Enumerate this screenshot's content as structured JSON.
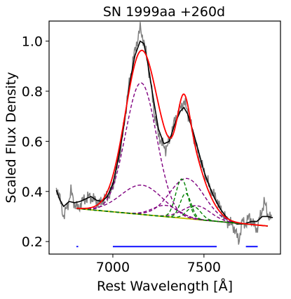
{
  "chart_data": {
    "type": "line",
    "title": "SN 1999aa  +260d",
    "xlabel": "Rest Wavelength [Å]",
    "ylabel": "Scaled Flux Density",
    "xlim": [
      6650,
      7920
    ],
    "ylim": [
      0.15,
      1.08
    ],
    "xticks": [
      7000,
      7500
    ],
    "xtick_labels": [
      "7000",
      "7500"
    ],
    "yticks": [
      0.2,
      0.4,
      0.6,
      0.8,
      1.0
    ],
    "ytick_labels": [
      "0.2",
      "0.4",
      "0.6",
      "0.8",
      "1.0"
    ],
    "grid": false,
    "colors": {
      "observed": "#808080",
      "smoothed": "#000000",
      "total_fit": "#ff0000",
      "components_a": "#800080",
      "components_b": "#008000",
      "continuum": "#bfbf00",
      "fit_regions": "#0000ff"
    },
    "continuum": {
      "x": [
        6800,
        7850
      ],
      "y": [
        0.332,
        0.262
      ]
    },
    "components": [
      {
        "style": "dashed",
        "color": "#800080",
        "center": 7155,
        "sigma": 85,
        "amplitude": 0.525
      },
      {
        "style": "dashed",
        "color": "#800080",
        "center": 7160,
        "sigma": 115,
        "amplitude": 0.117
      },
      {
        "style": "dashed",
        "color": "#800080",
        "center": 7291,
        "sigma": 72,
        "amplitude": 0.045
      },
      {
        "style": "dashed",
        "color": "#800080",
        "center": 7407,
        "sigma": 95,
        "amplitude": 0.16
      },
      {
        "style": "dashed",
        "color": "#800080",
        "center": 7460,
        "sigma": 75,
        "amplitude": 0.055
      },
      {
        "style": "dashed",
        "color": "#008000",
        "center": 7378,
        "sigma": 33,
        "amplitude": 0.156
      },
      {
        "style": "dashed",
        "color": "#008000",
        "center": 7400,
        "sigma": 30,
        "amplitude": 0.1
      },
      {
        "style": "dashed",
        "color": "#008000",
        "center": 7445,
        "sigma": 38,
        "amplitude": 0.05
      }
    ],
    "fit_regions": [
      [
        6800,
        6810
      ],
      [
        7000,
        7570
      ],
      [
        7730,
        7795
      ]
    ],
    "observed_anchors": [
      [
        6690,
        0.42
      ],
      [
        6710,
        0.37
      ],
      [
        6730,
        0.3
      ],
      [
        6750,
        0.34
      ],
      [
        6770,
        0.4
      ],
      [
        6790,
        0.35
      ],
      [
        6810,
        0.33
      ],
      [
        6830,
        0.36
      ],
      [
        6850,
        0.37
      ],
      [
        6870,
        0.38
      ],
      [
        6890,
        0.37
      ],
      [
        6910,
        0.36
      ],
      [
        6930,
        0.35
      ],
      [
        6950,
        0.37
      ],
      [
        6970,
        0.38
      ],
      [
        6990,
        0.4
      ],
      [
        7010,
        0.45
      ],
      [
        7030,
        0.52
      ],
      [
        7050,
        0.6
      ],
      [
        7070,
        0.72
      ],
      [
        7090,
        0.83
      ],
      [
        7110,
        0.92
      ],
      [
        7130,
        0.99
      ],
      [
        7150,
        1.05
      ],
      [
        7170,
        1.0
      ],
      [
        7190,
        0.92
      ],
      [
        7210,
        0.82
      ],
      [
        7230,
        0.7
      ],
      [
        7250,
        0.63
      ],
      [
        7270,
        0.59
      ],
      [
        7290,
        0.57
      ],
      [
        7310,
        0.6
      ],
      [
        7330,
        0.66
      ],
      [
        7350,
        0.7
      ],
      [
        7370,
        0.73
      ],
      [
        7390,
        0.76
      ],
      [
        7410,
        0.72
      ],
      [
        7430,
        0.66
      ],
      [
        7450,
        0.6
      ],
      [
        7470,
        0.55
      ],
      [
        7490,
        0.5
      ],
      [
        7510,
        0.46
      ],
      [
        7530,
        0.42
      ],
      [
        7550,
        0.39
      ],
      [
        7570,
        0.37
      ],
      [
        7590,
        0.33
      ],
      [
        7610,
        0.3
      ],
      [
        7630,
        0.28
      ],
      [
        7650,
        0.27
      ],
      [
        7670,
        0.25
      ],
      [
        7690,
        0.2
      ],
      [
        7710,
        0.28
      ],
      [
        7730,
        0.27
      ],
      [
        7750,
        0.3
      ],
      [
        7770,
        0.27
      ],
      [
        7790,
        0.25
      ],
      [
        7810,
        0.3
      ],
      [
        7830,
        0.36
      ],
      [
        7850,
        0.31
      ],
      [
        7870,
        0.29
      ]
    ],
    "smoothed_anchors": [
      [
        6690,
        0.405
      ],
      [
        6710,
        0.365
      ],
      [
        6730,
        0.34
      ],
      [
        6760,
        0.36
      ],
      [
        6790,
        0.355
      ],
      [
        6820,
        0.36
      ],
      [
        6850,
        0.37
      ],
      [
        6880,
        0.38
      ],
      [
        6910,
        0.365
      ],
      [
        6940,
        0.36
      ],
      [
        6970,
        0.38
      ],
      [
        7000,
        0.43
      ],
      [
        7030,
        0.53
      ],
      [
        7060,
        0.66
      ],
      [
        7090,
        0.82
      ],
      [
        7120,
        0.94
      ],
      [
        7150,
        1.0
      ],
      [
        7170,
        0.99
      ],
      [
        7190,
        0.92
      ],
      [
        7220,
        0.78
      ],
      [
        7250,
        0.65
      ],
      [
        7280,
        0.59
      ],
      [
        7310,
        0.6
      ],
      [
        7340,
        0.67
      ],
      [
        7370,
        0.72
      ],
      [
        7390,
        0.735
      ],
      [
        7410,
        0.71
      ],
      [
        7440,
        0.64
      ],
      [
        7470,
        0.56
      ],
      [
        7500,
        0.48
      ],
      [
        7530,
        0.42
      ],
      [
        7560,
        0.37
      ],
      [
        7590,
        0.33
      ],
      [
        7620,
        0.3
      ],
      [
        7650,
        0.28
      ],
      [
        7680,
        0.27
      ],
      [
        7720,
        0.27
      ],
      [
        7760,
        0.28
      ],
      [
        7790,
        0.28
      ],
      [
        7820,
        0.3
      ],
      [
        7850,
        0.3
      ],
      [
        7880,
        0.295
      ]
    ]
  }
}
